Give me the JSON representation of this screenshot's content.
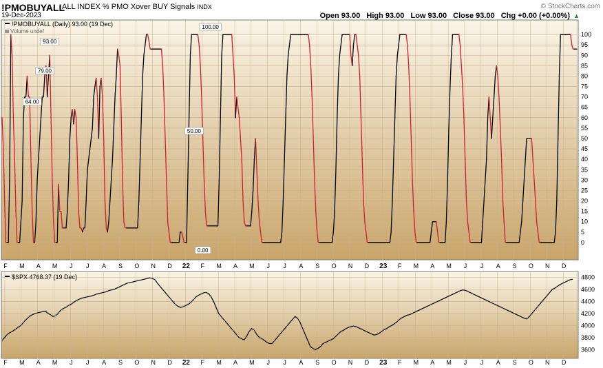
{
  "header": {
    "symbol": "!PMOBUYALL",
    "description": "ALL INDEX % PMO Xover BUY Signals",
    "exchange": "INDX",
    "date": "19-Dec-2023",
    "watermark": "© StockCharts.com",
    "open": "Open 93.00",
    "high": "High 93.00",
    "low": "Low 93.00",
    "close": "Close 93.00",
    "change": "Chg +0.00 (+0.00%)",
    "change_marker": "▲"
  },
  "colors": {
    "up": "#000000",
    "down": "#d01c2c",
    "panel_top": "#faf4e6",
    "panel_bottom": "#c9a56a",
    "grid": "#c7b290"
  },
  "legend": {
    "top": "!PMOBUYALL (Daily) 93.00 (19 Dec)",
    "volume": "Volume undef",
    "bottom": "$SPX 4768.37 (19 Dec)"
  },
  "x_axis": {
    "months": [
      "F",
      "M",
      "A",
      "M",
      "J",
      "J",
      "A",
      "S",
      "O",
      "N",
      "D",
      "22",
      "F",
      "M",
      "A",
      "M",
      "J",
      "J",
      "A",
      "S",
      "O",
      "N",
      "D",
      "23",
      "F",
      "M",
      "A",
      "M",
      "J",
      "J",
      "A",
      "S",
      "O",
      "N",
      "D"
    ]
  },
  "chart_data": [
    {
      "type": "line",
      "title": "!PMOBUYALL",
      "ylim": [
        -4,
        104
      ],
      "y_ticks": [
        0,
        5,
        10,
        15,
        20,
        25,
        30,
        35,
        40,
        45,
        50,
        55,
        60,
        65,
        70,
        75,
        80,
        85,
        90,
        95,
        100
      ],
      "grid": true,
      "up_color": "black",
      "down_color": "red",
      "annotations": [
        {
          "x": 24,
          "y": 64,
          "label": "64.00"
        },
        {
          "x": 34,
          "y": 79,
          "label": "79.00"
        },
        {
          "x": 38,
          "y": 93,
          "label": "93.00"
        },
        {
          "x": 153,
          "y": 50,
          "label": "50.00"
        },
        {
          "x": 160,
          "y": 0,
          "label": "0.00"
        },
        {
          "x": 166,
          "y": 100,
          "label": "100.00"
        }
      ],
      "values": [
        60,
        45,
        20,
        0,
        0,
        0,
        30,
        100,
        90,
        60,
        40,
        15,
        0,
        0,
        0,
        10,
        20,
        60,
        70,
        70,
        80,
        70,
        70,
        40,
        15,
        0,
        0,
        10,
        30,
        40,
        50,
        60,
        70,
        70,
        80,
        85,
        70,
        80,
        90,
        60,
        30,
        10,
        0,
        0,
        0,
        28,
        15,
        15,
        7,
        7,
        7,
        7,
        15,
        30,
        50,
        60,
        64,
        57,
        64,
        60,
        40,
        15,
        7,
        7,
        5,
        7,
        7,
        20,
        35,
        40,
        45,
        50,
        55,
        70,
        75,
        79,
        70,
        50,
        75,
        79,
        70,
        50,
        20,
        7,
        5,
        10,
        20,
        30,
        40,
        55,
        70,
        80,
        93,
        90,
        85,
        60,
        30,
        10,
        7,
        7,
        7,
        7,
        7,
        7,
        7,
        7,
        7,
        7,
        7,
        20,
        40,
        60,
        80,
        90,
        95,
        100,
        100,
        97,
        93,
        93,
        93,
        93,
        93,
        93,
        93,
        93,
        93,
        93,
        85,
        70,
        50,
        30,
        10,
        5,
        0,
        0,
        0,
        0,
        0,
        0,
        0,
        0,
        5,
        5,
        3,
        0,
        0,
        0,
        30,
        60,
        90,
        100,
        100,
        100,
        100,
        100,
        100,
        95,
        85,
        70,
        50,
        30,
        15,
        8,
        8,
        8,
        8,
        8,
        8,
        8,
        8,
        8,
        8,
        30,
        60,
        90,
        100,
        100,
        100,
        100,
        100,
        100,
        100,
        100,
        90,
        80,
        60,
        70,
        65,
        60,
        50,
        40,
        20,
        10,
        8,
        8,
        8,
        8,
        8,
        15,
        25,
        40,
        50,
        35,
        20,
        10,
        5,
        0,
        0,
        0,
        0,
        0,
        0,
        0,
        0,
        0,
        0,
        0,
        0,
        0,
        0,
        0,
        0,
        5,
        20,
        40,
        60,
        80,
        90,
        95,
        100,
        100,
        100,
        100,
        100,
        100,
        100,
        100,
        100,
        100,
        100,
        100,
        100,
        100,
        100,
        95,
        85,
        70,
        50,
        30,
        15,
        5,
        0,
        0,
        0,
        0,
        0,
        0,
        0,
        0,
        0,
        0,
        0,
        0,
        5,
        15,
        35,
        60,
        80,
        90,
        95,
        100,
        100,
        100,
        100,
        100,
        100,
        100,
        90,
        85,
        95,
        100,
        100,
        95,
        90,
        80,
        60,
        40,
        20,
        10,
        5,
        0,
        0,
        0,
        0,
        0,
        0,
        0,
        0,
        0,
        0,
        0,
        0,
        0,
        0,
        0,
        0,
        0,
        0,
        0,
        5,
        20,
        40,
        60,
        80,
        90,
        95,
        100,
        100,
        100,
        100,
        100,
        100,
        95,
        85,
        70,
        50,
        30,
        15,
        5,
        0,
        0,
        0,
        0,
        0,
        0,
        0,
        0,
        0,
        0,
        0,
        0,
        5,
        10,
        10,
        10,
        10,
        5,
        0,
        0,
        0,
        0,
        0,
        0,
        10,
        30,
        55,
        75,
        90,
        100,
        100,
        100,
        100,
        100,
        100,
        95,
        85,
        75,
        60,
        40,
        20,
        10,
        5,
        0,
        0,
        0,
        0,
        0,
        0,
        0,
        0,
        0,
        0,
        10,
        20,
        30,
        40,
        60,
        70,
        60,
        50,
        60,
        70,
        80,
        85,
        80,
        70,
        55,
        40,
        20,
        10,
        0,
        0,
        0,
        0,
        0,
        0,
        0,
        0,
        0,
        0,
        0,
        0,
        5,
        10,
        20,
        30,
        40,
        50,
        50,
        50,
        50,
        50,
        40,
        30,
        20,
        10,
        5,
        0,
        0,
        0,
        0,
        0,
        0,
        0,
        0,
        0,
        0,
        0,
        0,
        0,
        5,
        20,
        50,
        80,
        100,
        100,
        100,
        100,
        100,
        100,
        100,
        100,
        100,
        95,
        93,
        93,
        93,
        93
      ]
    },
    {
      "type": "line",
      "title": "$SPX",
      "ylim": [
        3500,
        4850
      ],
      "y_ticks": [
        3600,
        3800,
        4000,
        4200,
        4400,
        4600,
        4800
      ],
      "grid": true,
      "color": "black",
      "values": [
        3750,
        3800,
        3850,
        3880,
        3900,
        3930,
        3960,
        3990,
        4030,
        4080,
        4120,
        4160,
        4180,
        4200,
        4210,
        4220,
        4230,
        4240,
        4200,
        4180,
        4150,
        4160,
        4200,
        4250,
        4280,
        4300,
        4330,
        4350,
        4380,
        4410,
        4430,
        4450,
        4460,
        4470,
        4480,
        4490,
        4500,
        4520,
        4530,
        4540,
        4550,
        4560,
        4580,
        4590,
        4600,
        4620,
        4640,
        4660,
        4680,
        4700,
        4710,
        4720,
        4730,
        4740,
        4750,
        4760,
        4770,
        4780,
        4790,
        4780,
        4760,
        4700,
        4650,
        4600,
        4550,
        4500,
        4450,
        4400,
        4350,
        4320,
        4300,
        4310,
        4330,
        4350,
        4380,
        4420,
        4470,
        4500,
        4520,
        4540,
        4550,
        4530,
        4480,
        4400,
        4300,
        4200,
        4150,
        4100,
        4050,
        4000,
        3950,
        3900,
        3850,
        3800,
        3780,
        3760,
        3820,
        3900,
        3950,
        3920,
        3850,
        3800,
        3780,
        3750,
        3720,
        3700,
        3700,
        3750,
        3800,
        3850,
        3900,
        3950,
        4000,
        4050,
        4100,
        4150,
        4120,
        4050,
        3950,
        3850,
        3750,
        3650,
        3620,
        3600,
        3620,
        3650,
        3700,
        3720,
        3740,
        3760,
        3780,
        3820,
        3860,
        3900,
        3920,
        3950,
        3970,
        3980,
        3990,
        3980,
        3960,
        3940,
        3920,
        3900,
        3880,
        3860,
        3840,
        3850,
        3870,
        3900,
        3930,
        3950,
        3980,
        4000,
        4030,
        4060,
        4100,
        4130,
        4150,
        4170,
        4180,
        4200,
        4220,
        4240,
        4260,
        4280,
        4300,
        4320,
        4340,
        4360,
        4380,
        4400,
        4420,
        4440,
        4460,
        4480,
        4500,
        4520,
        4540,
        4560,
        4580,
        4590,
        4580,
        4560,
        4540,
        4520,
        4500,
        4480,
        4460,
        4440,
        4420,
        4400,
        4380,
        4360,
        4340,
        4320,
        4300,
        4280,
        4260,
        4240,
        4220,
        4200,
        4180,
        4160,
        4140,
        4120,
        4110,
        4150,
        4200,
        4250,
        4300,
        4350,
        4400,
        4450,
        4500,
        4550,
        4600,
        4620,
        4650,
        4680,
        4700,
        4720,
        4740,
        4760,
        4768
      ]
    }
  ]
}
